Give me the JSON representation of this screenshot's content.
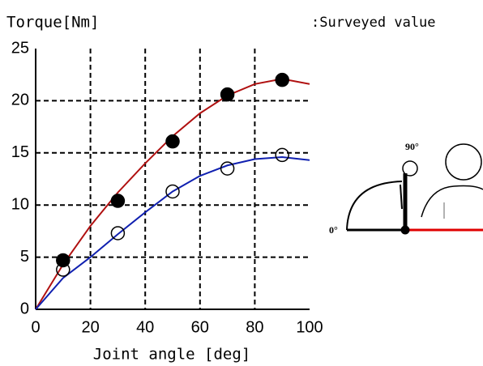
{
  "chart_data": {
    "type": "line",
    "y_label": "Torque[Nm]",
    "x_label": "Joint angle   [deg]",
    "legend_text": ":Surveyed value",
    "annotations": [
      "90°",
      "0°"
    ],
    "xlim": [
      0,
      100
    ],
    "ylim": [
      0,
      25
    ],
    "xticks": [
      0,
      20,
      40,
      60,
      80,
      100
    ],
    "yticks": [
      0,
      5,
      10,
      15,
      20,
      25
    ],
    "grid": true,
    "series": [
      {
        "style": "line",
        "color": "#b01010",
        "x": [
          0,
          10,
          20,
          30,
          40,
          50,
          60,
          70,
          80,
          90,
          100
        ],
        "values": [
          0,
          4.3,
          8,
          11.2,
          14,
          16.6,
          18.8,
          20.5,
          21.6,
          22.1,
          21.6
        ]
      },
      {
        "style": "line",
        "color": "#1020b0",
        "x": [
          0,
          10,
          20,
          30,
          40,
          50,
          60,
          70,
          80,
          90,
          100
        ],
        "values": [
          0,
          3,
          5,
          7.2,
          9.3,
          11.3,
          12.8,
          13.8,
          14.4,
          14.6,
          14.3
        ]
      },
      {
        "style": "filled-marker",
        "color": "#000000",
        "x": [
          10,
          30,
          50,
          70,
          90
        ],
        "values": [
          4.7,
          10.4,
          16.1,
          20.6,
          22
        ]
      },
      {
        "style": "open-marker",
        "color": "#000000",
        "x": [
          10,
          30,
          50,
          70,
          90
        ],
        "values": [
          3.8,
          7.3,
          11.3,
          13.5,
          14.8
        ]
      }
    ]
  }
}
